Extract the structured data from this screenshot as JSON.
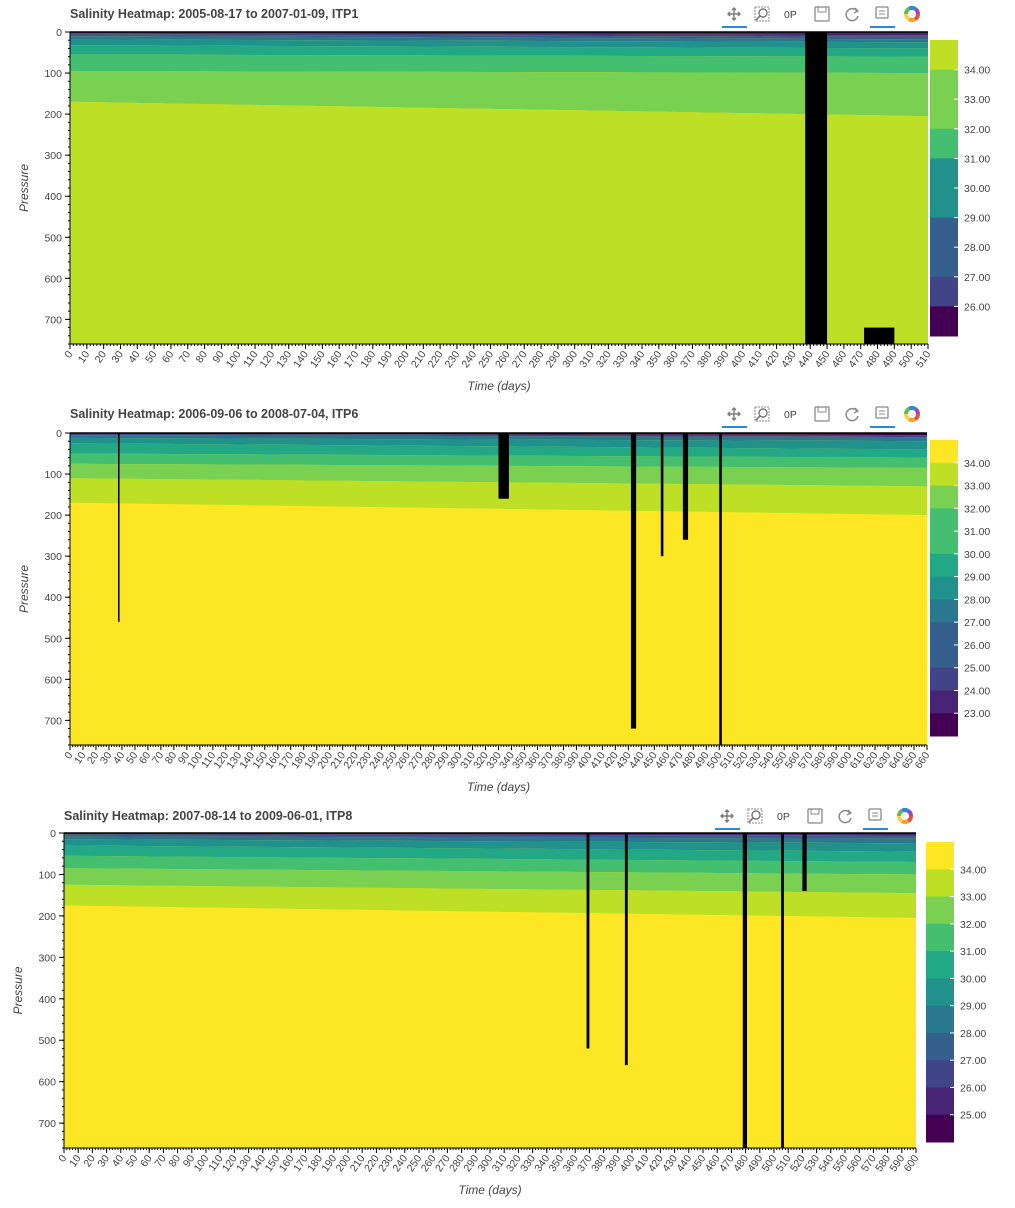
{
  "palette": [
    "#440154",
    "#482475",
    "#414487",
    "#355f8d",
    "#2a788e",
    "#21918c",
    "#22a884",
    "#44bf70",
    "#7ad151",
    "#bddf26",
    "#fde725"
  ],
  "missing_color": "#000000",
  "toolbar": {
    "tools": [
      "pan-tool-icon",
      "box-zoom-tool-icon",
      "wheel-zoom-tool-icon",
      "save-tool-icon",
      "reset-tool-icon",
      "hover-tool-icon",
      "bokeh-logo-icon"
    ],
    "zoom_glyph": "0P"
  },
  "chart_data": [
    {
      "type": "heatmap",
      "title": "Salinity Heatmap: 2005-08-17 to 2007-01-09, ITP1",
      "xlabel": "Time (days)",
      "ylabel": "Pressure",
      "xlim": [
        0,
        510
      ],
      "ylim": [
        760,
        0
      ],
      "x_ticks": [
        0,
        10,
        20,
        30,
        40,
        50,
        60,
        70,
        80,
        90,
        100,
        110,
        120,
        130,
        140,
        150,
        160,
        170,
        180,
        190,
        200,
        210,
        220,
        230,
        240,
        250,
        260,
        270,
        280,
        290,
        300,
        310,
        320,
        330,
        340,
        350,
        360,
        370,
        380,
        390,
        400,
        410,
        420,
        430,
        440,
        450,
        460,
        470,
        480,
        490,
        500,
        510
      ],
      "y_ticks": [
        0,
        100,
        200,
        300,
        400,
        500,
        600,
        700
      ],
      "colorbar": {
        "labels": [
          "34.00",
          "33.00",
          "32.00",
          "31.00",
          "30.00",
          "29.00",
          "28.00",
          "27.00",
          "26.00"
        ],
        "range": [
          25.5,
          34.5
        ]
      },
      "layers": [
        {
          "salinity": 26.0,
          "depth_start": 0,
          "depth_end": 3,
          "depth_end_late": 8
        },
        {
          "salinity": 27.0,
          "depth_start": 3,
          "depth_end": 6,
          "depth_end_late": 12
        },
        {
          "salinity": 28.0,
          "depth_start": 6,
          "depth_end": 10,
          "depth_end_late": 18
        },
        {
          "salinity": 29.0,
          "depth_start": 10,
          "depth_end": 18,
          "depth_end_late": 25
        },
        {
          "salinity": 30.0,
          "depth_start": 18,
          "depth_end": 32,
          "depth_end_late": 40
        },
        {
          "salinity": 31.0,
          "depth_start": 32,
          "depth_end": 55,
          "depth_end_late": 60
        },
        {
          "salinity": 32.0,
          "depth_start": 55,
          "depth_end": 95,
          "depth_end_late": 100
        },
        {
          "salinity": 33.0,
          "depth_start": 95,
          "depth_end": 170,
          "depth_end_late": 205
        },
        {
          "salinity": 34.0,
          "depth_start": 170,
          "depth_end": 760,
          "depth_end_late": 760
        }
      ],
      "missing_bands": [
        {
          "day_start": 437,
          "day_end": 450,
          "depth_from": 0,
          "depth_to": 760
        },
        {
          "day_start": 472,
          "day_end": 490,
          "depth_from": 720,
          "depth_to": 760
        }
      ]
    },
    {
      "type": "heatmap",
      "title": "Salinity Heatmap: 2006-09-06 to 2008-07-04, ITP6",
      "xlabel": "Time (days)",
      "ylabel": "Pressure",
      "xlim": [
        0,
        660
      ],
      "ylim": [
        760,
        0
      ],
      "x_ticks": [
        0,
        10,
        20,
        30,
        40,
        50,
        60,
        70,
        80,
        90,
        100,
        110,
        120,
        130,
        140,
        150,
        160,
        170,
        180,
        190,
        200,
        210,
        220,
        230,
        240,
        250,
        260,
        270,
        280,
        290,
        300,
        310,
        320,
        330,
        340,
        350,
        360,
        370,
        380,
        390,
        400,
        410,
        420,
        430,
        440,
        450,
        460,
        470,
        480,
        490,
        500,
        510,
        520,
        530,
        540,
        550,
        560,
        570,
        580,
        590,
        600,
        610,
        620,
        630,
        640,
        650,
        660
      ],
      "y_ticks": [
        0,
        100,
        200,
        300,
        400,
        500,
        600,
        700
      ],
      "colorbar": {
        "labels": [
          "34.00",
          "33.00",
          "32.00",
          "31.00",
          "30.00",
          "29.00",
          "28.00",
          "27.00",
          "26.00",
          "25.00",
          "24.00",
          "23.00"
        ],
        "range": [
          22.5,
          34.5
        ]
      },
      "layers": [
        {
          "salinity": 23.0,
          "depth_start": 0,
          "depth_end": 2,
          "depth_end_late": 5
        },
        {
          "salinity": 25.0,
          "depth_start": 2,
          "depth_end": 5,
          "depth_end_late": 10
        },
        {
          "salinity": 27.0,
          "depth_start": 5,
          "depth_end": 12,
          "depth_end_late": 20
        },
        {
          "salinity": 29.0,
          "depth_start": 12,
          "depth_end": 25,
          "depth_end_late": 40
        },
        {
          "salinity": 30.0,
          "depth_start": 25,
          "depth_end": 50,
          "depth_end_late": 60
        },
        {
          "salinity": 31.0,
          "depth_start": 50,
          "depth_end": 75,
          "depth_end_late": 85
        },
        {
          "salinity": 32.0,
          "depth_start": 75,
          "depth_end": 110,
          "depth_end_late": 130
        },
        {
          "salinity": 33.0,
          "depth_start": 110,
          "depth_end": 170,
          "depth_end_late": 200
        },
        {
          "salinity": 34.0,
          "depth_start": 170,
          "depth_end": 760,
          "depth_end_late": 760
        }
      ],
      "missing_bands": [
        {
          "day_start": 37,
          "day_end": 38,
          "depth_from": 0,
          "depth_to": 460
        },
        {
          "day_start": 330,
          "day_end": 338,
          "depth_from": 0,
          "depth_to": 160
        },
        {
          "day_start": 432,
          "day_end": 436,
          "depth_from": 0,
          "depth_to": 720
        },
        {
          "day_start": 455,
          "day_end": 457,
          "depth_from": 0,
          "depth_to": 300
        },
        {
          "day_start": 472,
          "day_end": 476,
          "depth_from": 0,
          "depth_to": 260
        },
        {
          "day_start": 500,
          "day_end": 502,
          "depth_from": 0,
          "depth_to": 760
        }
      ]
    },
    {
      "type": "heatmap",
      "title": "Salinity Heatmap: 2007-08-14 to 2009-06-01, ITP8",
      "xlabel": "Time (days)",
      "ylabel": "Pressure",
      "xlim": [
        0,
        600
      ],
      "ylim": [
        760,
        0
      ],
      "x_ticks": [
        0,
        10,
        20,
        30,
        40,
        50,
        60,
        70,
        80,
        90,
        100,
        110,
        120,
        130,
        140,
        150,
        160,
        170,
        180,
        190,
        200,
        210,
        220,
        230,
        240,
        250,
        260,
        270,
        280,
        290,
        300,
        310,
        320,
        330,
        340,
        350,
        360,
        370,
        380,
        390,
        400,
        410,
        420,
        430,
        440,
        450,
        460,
        470,
        480,
        490,
        500,
        510,
        520,
        530,
        540,
        550,
        560,
        570,
        580,
        590,
        600
      ],
      "y_ticks": [
        0,
        100,
        200,
        300,
        400,
        500,
        600,
        700
      ],
      "colorbar": {
        "labels": [
          "34.00",
          "33.00",
          "32.00",
          "31.00",
          "30.00",
          "29.00",
          "28.00",
          "27.00",
          "26.00",
          "25.00"
        ],
        "range": [
          24.5,
          34.5
        ]
      },
      "layers": [
        {
          "salinity": 25.0,
          "depth_start": 0,
          "depth_end": 3,
          "depth_end_late": 6
        },
        {
          "salinity": 27.0,
          "depth_start": 3,
          "depth_end": 8,
          "depth_end_late": 14
        },
        {
          "salinity": 28.0,
          "depth_start": 8,
          "depth_end": 15,
          "depth_end_late": 25
        },
        {
          "salinity": 29.0,
          "depth_start": 15,
          "depth_end": 30,
          "depth_end_late": 45
        },
        {
          "salinity": 30.0,
          "depth_start": 30,
          "depth_end": 55,
          "depth_end_late": 70
        },
        {
          "salinity": 31.0,
          "depth_start": 55,
          "depth_end": 85,
          "depth_end_late": 100
        },
        {
          "salinity": 32.0,
          "depth_start": 85,
          "depth_end": 125,
          "depth_end_late": 145
        },
        {
          "salinity": 33.0,
          "depth_start": 125,
          "depth_end": 175,
          "depth_end_late": 205
        },
        {
          "salinity": 34.0,
          "depth_start": 175,
          "depth_end": 760,
          "depth_end_late": 760
        }
      ],
      "missing_bands": [
        {
          "day_start": 368,
          "day_end": 370,
          "depth_from": 0,
          "depth_to": 520
        },
        {
          "day_start": 395,
          "day_end": 397,
          "depth_from": 0,
          "depth_to": 560
        },
        {
          "day_start": 478,
          "day_end": 481,
          "depth_from": 0,
          "depth_to": 760
        },
        {
          "day_start": 505,
          "day_end": 507,
          "depth_from": 0,
          "depth_to": 760
        },
        {
          "day_start": 520,
          "day_end": 523,
          "depth_from": 0,
          "depth_to": 140
        }
      ]
    }
  ]
}
